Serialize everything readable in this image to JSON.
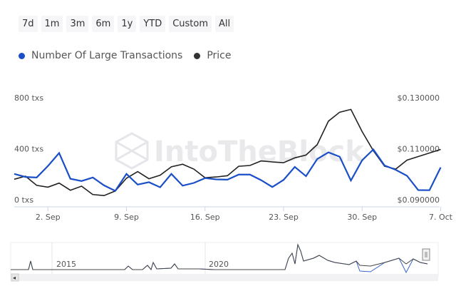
{
  "range_buttons": [
    "7d",
    "1m",
    "3m",
    "6m",
    "1y",
    "YTD",
    "Custom",
    "All"
  ],
  "legend": [
    {
      "label": "Number Of Large Transactions",
      "color": "#1a4fc7"
    },
    {
      "label": "Price",
      "color": "#222222"
    }
  ],
  "watermark": "IntoTheBlock",
  "navigator": {
    "labels": [
      "2015",
      "2020"
    ]
  },
  "chart_data": {
    "type": "line",
    "x": [
      "Aug 30",
      "Aug 31",
      "Sep 1",
      "Sep 2",
      "Sep 3",
      "Sep 4",
      "Sep 5",
      "Sep 6",
      "Sep 7",
      "Sep 8",
      "Sep 9",
      "Sep 10",
      "Sep 11",
      "Sep 12",
      "Sep 13",
      "Sep 14",
      "Sep 15",
      "Sep 16",
      "Sep 17",
      "Sep 18",
      "Sep 19",
      "Sep 20",
      "Sep 21",
      "Sep 22",
      "Sep 23",
      "Sep 24",
      "Sep 25",
      "Sep 26",
      "Sep 27",
      "Sep 28",
      "Sep 29",
      "Sep 30",
      "Oct 1",
      "Oct 2",
      "Oct 3",
      "Oct 4",
      "Oct 5",
      "Oct 6",
      "Oct 7"
    ],
    "x_ticks": [
      "2. Sep",
      "9. Sep",
      "16. Sep",
      "23. Sep",
      "30. Sep",
      "7. Oct"
    ],
    "y_left": {
      "ticks": [
        "0 txs",
        "400 txs",
        "800 txs"
      ],
      "range": [
        0,
        800
      ]
    },
    "y_right": {
      "ticks": [
        "$0.090000",
        "$0.110000",
        "$0.130000"
      ],
      "range": [
        0.09,
        0.13
      ]
    },
    "grid": false,
    "legend_position": "top-left",
    "series": [
      {
        "name": "Number Of Large Transactions",
        "axis": "left",
        "color": "#1a4fc7",
        "values": [
          208,
          184,
          180,
          270,
          372,
          170,
          152,
          180,
          118,
          75,
          208,
          124,
          143,
          103,
          208,
          116,
          137,
          175,
          165,
          163,
          203,
          203,
          159,
          105,
          161,
          263,
          190,
          325,
          377,
          343,
          156,
          315,
          400,
          274,
          240,
          193,
          81,
          80,
          259
        ]
      },
      {
        "name": "Price",
        "axis": "right",
        "color": "#222222",
        "values": [
          0.0983,
          0.0995,
          0.0959,
          0.0952,
          0.0968,
          0.094,
          0.0956,
          0.0923,
          0.0919,
          0.0937,
          0.0987,
          0.1013,
          0.0985,
          0.0999,
          0.1032,
          0.1042,
          0.1023,
          0.0989,
          0.0992,
          0.0997,
          0.1034,
          0.1037,
          0.1055,
          0.1051,
          0.1048,
          0.1067,
          0.1078,
          0.1119,
          0.1211,
          0.1246,
          0.1257,
          0.117,
          0.1095,
          0.1034,
          0.1023,
          0.1058,
          0.1072,
          0.1086,
          0.11
        ]
      }
    ]
  }
}
